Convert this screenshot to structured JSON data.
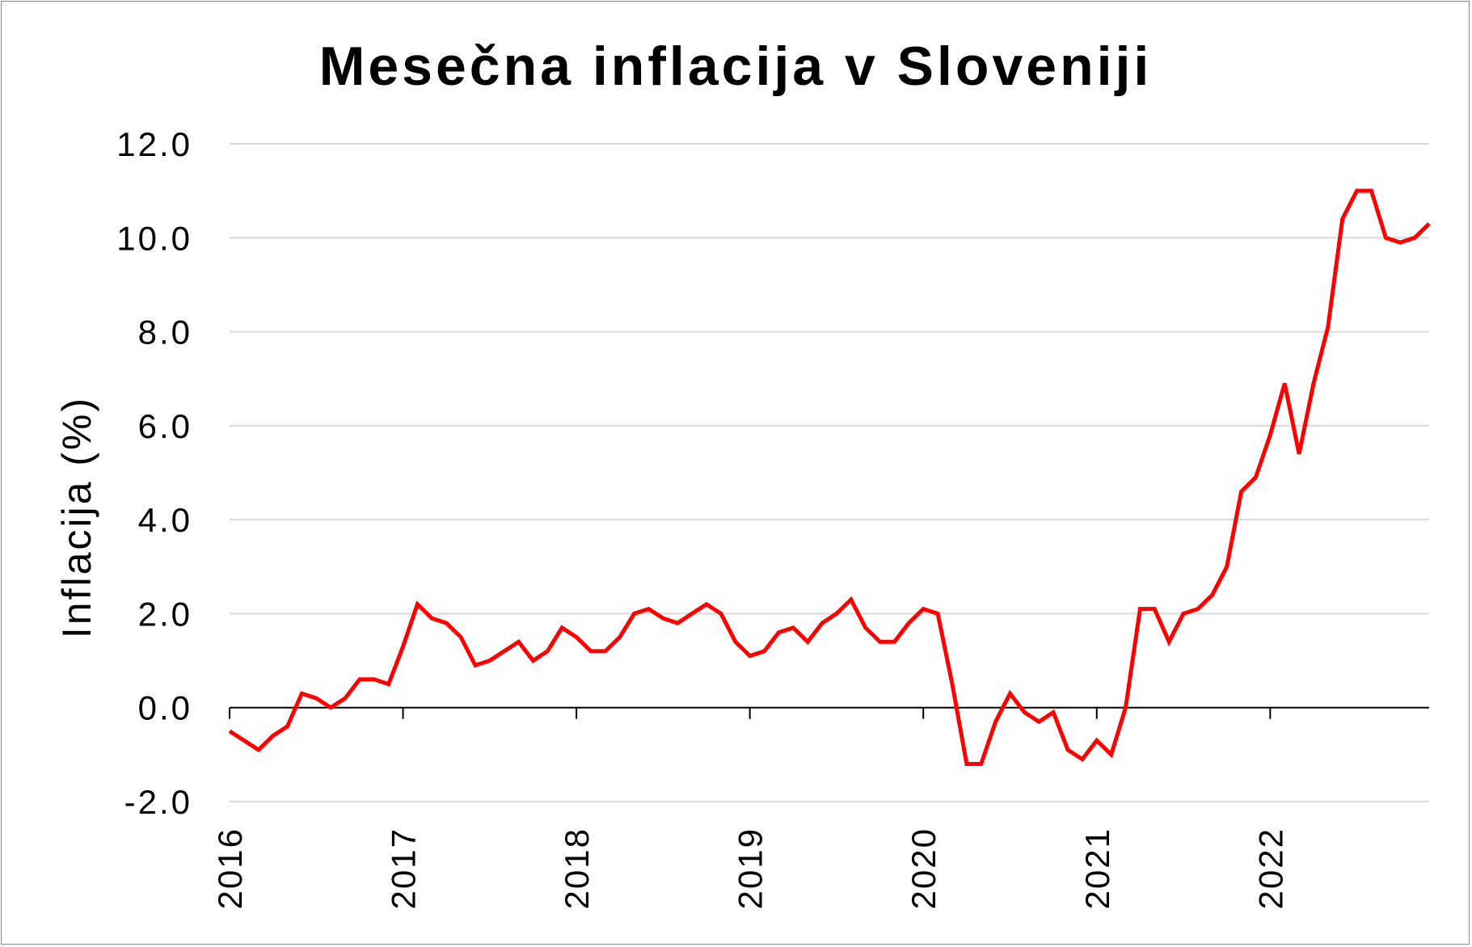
{
  "chart_data": {
    "type": "line",
    "title": "Mesečna inflacija v Sloveniji",
    "xlabel": "",
    "ylabel": "Inflacija (%)",
    "ylim": [
      -2,
      12
    ],
    "yticks": [
      "-2.0",
      "0.0",
      "2.0",
      "4.0",
      "6.0",
      "8.0",
      "10.0",
      "12.0"
    ],
    "xticks": [
      "2016",
      "2017",
      "2018",
      "2019",
      "2020",
      "2021",
      "2022"
    ],
    "grid": true,
    "legend": "none",
    "line_color": "#ff0000",
    "x_start": "2016-01",
    "x_end": "2022-12",
    "series": [
      {
        "values": [
          -0.5,
          -0.7,
          -0.9,
          -0.6,
          -0.4,
          0.3,
          0.2,
          0.0,
          0.2,
          0.6,
          0.6,
          0.5,
          1.3,
          2.2,
          1.9,
          1.8,
          1.5,
          0.9,
          1.0,
          1.2,
          1.4,
          1.0,
          1.2,
          1.7,
          1.5,
          1.2,
          1.2,
          1.5,
          2.0,
          2.1,
          1.9,
          1.8,
          2.0,
          2.2,
          2.0,
          1.4,
          1.1,
          1.2,
          1.6,
          1.7,
          1.4,
          1.8,
          2.0,
          2.3,
          1.7,
          1.4,
          1.4,
          1.8,
          2.1,
          2.0,
          0.5,
          -1.2,
          -1.2,
          -0.3,
          0.3,
          -0.1,
          -0.3,
          -0.1,
          -0.9,
          -1.1,
          -0.7,
          -1.0,
          0.0,
          2.1,
          2.1,
          1.4,
          2.0,
          2.1,
          2.4,
          3.0,
          4.6,
          4.9,
          5.8,
          6.9,
          5.4,
          6.9,
          8.1,
          10.4,
          11.0,
          11.0,
          10.0,
          9.9,
          10.0,
          10.3
        ]
      }
    ]
  }
}
